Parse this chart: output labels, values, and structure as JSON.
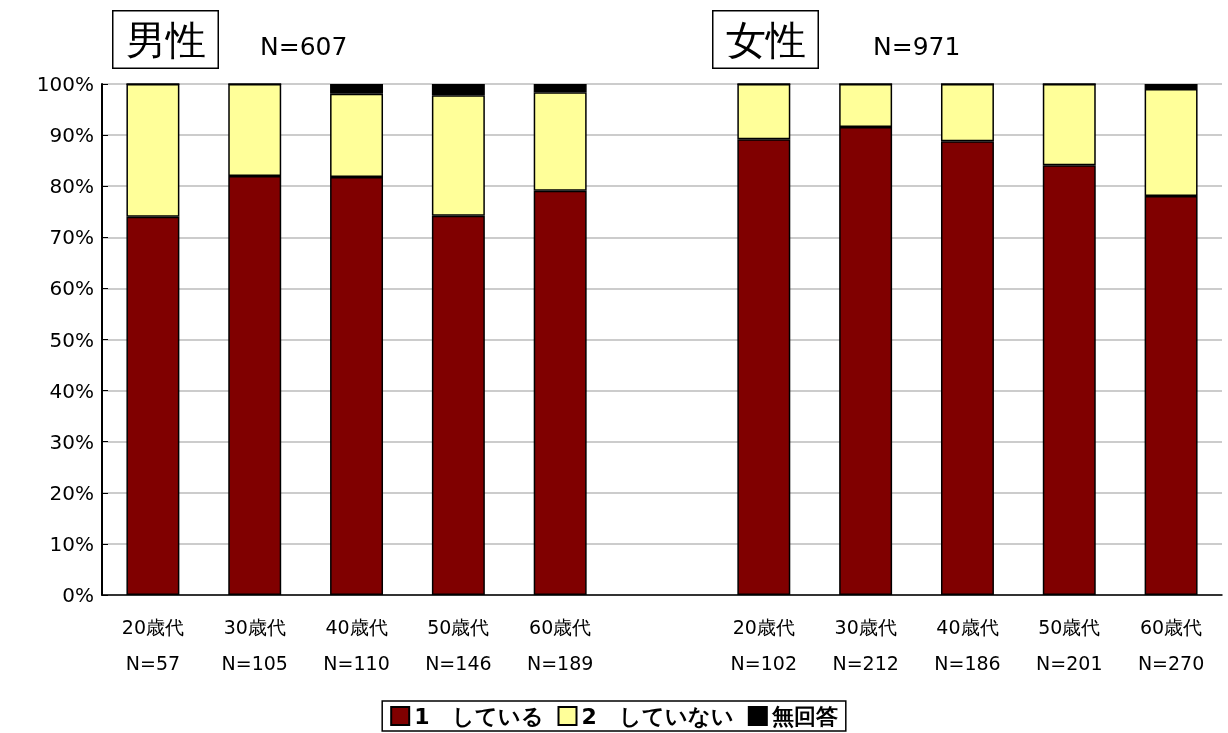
{
  "chart_data": {
    "type": "bar",
    "stacked": true,
    "categories": [
      "20歳代\nN=57",
      "30歳代\nN=105",
      "40歳代\nN=110",
      "50歳代\nN=146",
      "60歳代\nN=189",
      null,
      "20歳代\nN=102",
      "30歳代\nN=212",
      "40歳代\nN=186",
      "50歳代\nN=201",
      "60歳代\nN=270"
    ],
    "series": [
      {
        "name": "1　している",
        "color": "#800000",
        "values": [
          74.0,
          82.0,
          81.8,
          74.2,
          79.1,
          null,
          89.2,
          91.6,
          88.8,
          84.1,
          78.1
        ]
      },
      {
        "name": "2　していない",
        "color": "#ffff99",
        "values": [
          26.0,
          18.0,
          16.3,
          23.6,
          19.3,
          null,
          10.8,
          8.4,
          11.2,
          15.9,
          20.9
        ]
      },
      {
        "name": "無回答",
        "color": "#000000",
        "values": [
          0,
          0,
          1.9,
          2.2,
          1.6,
          null,
          0,
          0,
          0,
          0,
          1.0
        ]
      }
    ],
    "ylim": [
      0,
      100
    ],
    "yticks": [
      {
        "value": 0,
        "label": "0%"
      },
      {
        "value": 10,
        "label": "10%"
      },
      {
        "value": 20,
        "label": "20%"
      },
      {
        "value": 30,
        "label": "30%"
      },
      {
        "value": 40,
        "label": "40%"
      },
      {
        "value": 50,
        "label": "50%"
      },
      {
        "value": 60,
        "label": "60%"
      },
      {
        "value": 70,
        "label": "70%"
      },
      {
        "value": 80,
        "label": "80%"
      },
      {
        "value": 90,
        "label": "90%"
      },
      {
        "value": 100,
        "label": "100%"
      }
    ],
    "grid": "y",
    "legend": "bottom",
    "annotations": [
      "男性",
      "N=607",
      "女性",
      "N=971"
    ]
  }
}
